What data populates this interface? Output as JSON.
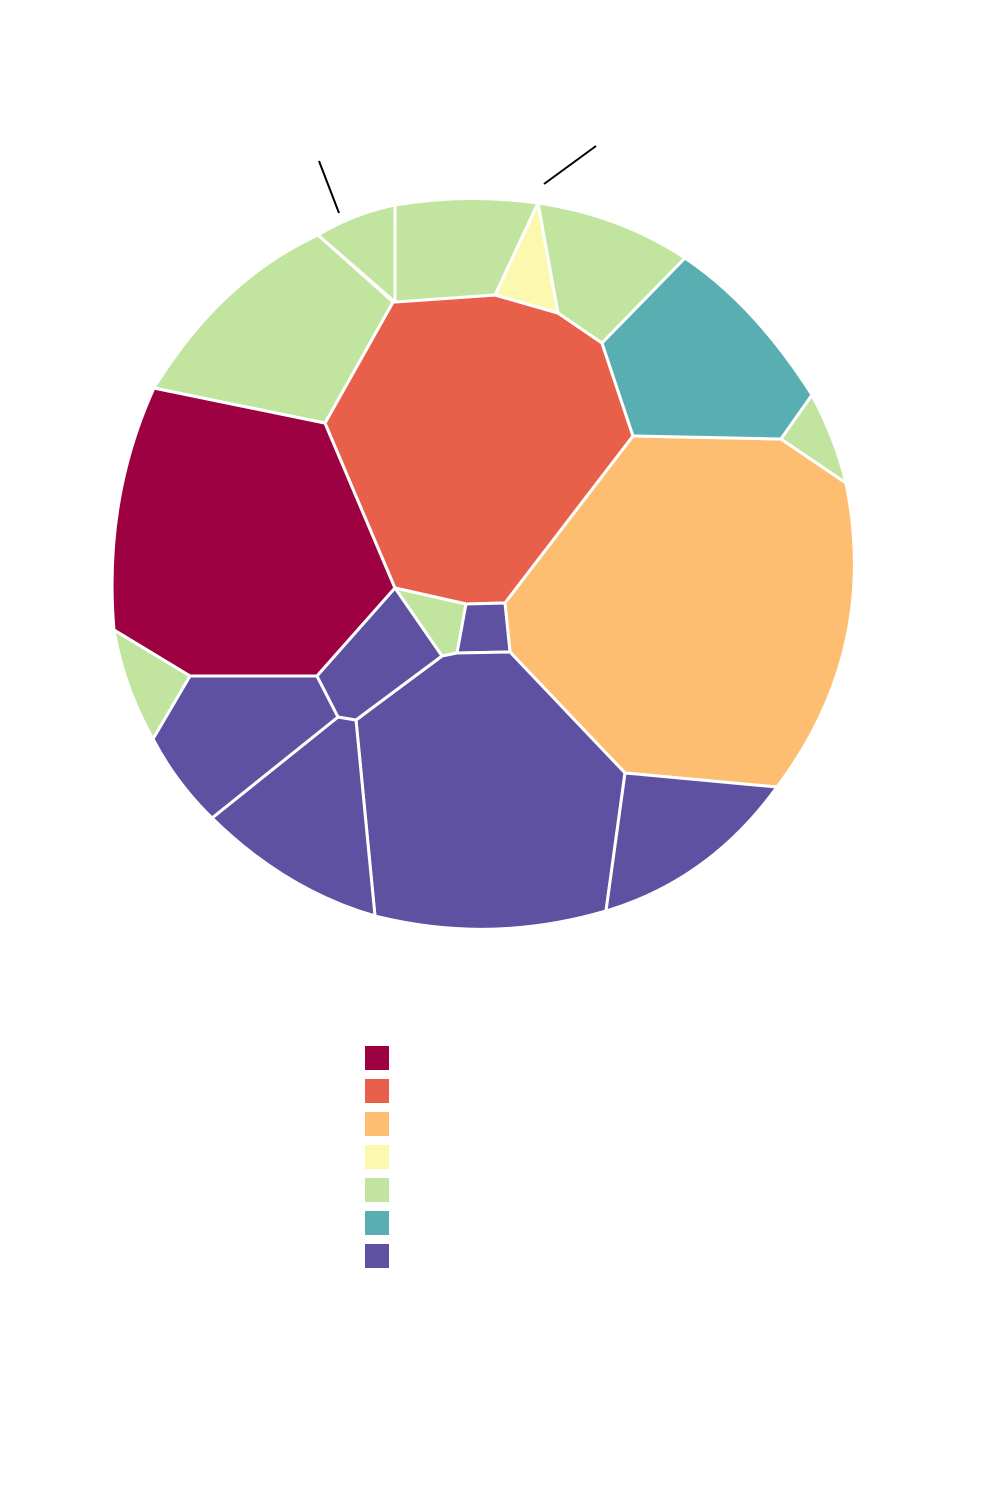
{
  "chart_data": {
    "type": "voronoi-treemap",
    "title": "",
    "color_categories": [
      {
        "name": "",
        "color": "#9e0142"
      },
      {
        "name": "",
        "color": "#e8604a"
      },
      {
        "name": "",
        "color": "#fdbe72"
      },
      {
        "name": "",
        "color": "#fbf8b0"
      },
      {
        "name": "",
        "color": "#c1e59f"
      },
      {
        "name": "",
        "color": "#58aeb0"
      },
      {
        "name": "",
        "color": "#5e51a2"
      }
    ],
    "cells": [
      {
        "category": 0,
        "share": 0.137
      },
      {
        "category": 1,
        "share": 0.137
      },
      {
        "category": 2,
        "share": 0.209
      },
      {
        "category": 3,
        "share": 0.007
      },
      {
        "category": 4,
        "share": 0.061
      },
      {
        "category": 4,
        "share": 0.048
      },
      {
        "category": 4,
        "share": 0.025
      },
      {
        "category": 4,
        "share": 0.046
      },
      {
        "category": 4,
        "share": 0.014
      },
      {
        "category": 4,
        "share": 0.022
      },
      {
        "category": 4,
        "share": 0.009
      },
      {
        "category": 5,
        "share": 0.071
      },
      {
        "category": 6,
        "share": 0.123
      },
      {
        "category": 6,
        "share": 0.047
      },
      {
        "category": 6,
        "share": 0.036
      },
      {
        "category": 6,
        "share": 0.051
      },
      {
        "category": 6,
        "share": 0.057
      },
      {
        "category": 6,
        "share": 0.017
      },
      {
        "category": 6,
        "share": 0.005
      }
    ],
    "annotations": [
      {
        "label": "",
        "cell": 6
      },
      {
        "label": "",
        "cell": 3
      }
    ],
    "legend": {
      "placement": "bottom-center"
    }
  }
}
